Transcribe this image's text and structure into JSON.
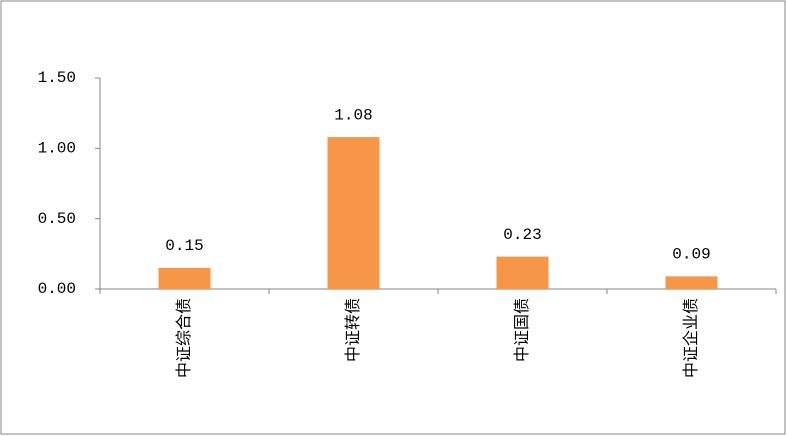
{
  "chart_data": {
    "type": "bar",
    "categories": [
      "中证综合债",
      "中证转债",
      "中证国债",
      "中证企业债"
    ],
    "values": [
      0.15,
      1.08,
      0.23,
      0.09
    ],
    "color": "#f79646",
    "ylim": [
      0,
      1.5
    ],
    "yticks": [
      {
        "value": 0,
        "label": "0.00"
      },
      {
        "value": 0.5,
        "label": "0.50"
      },
      {
        "value": 1,
        "label": "1.00"
      },
      {
        "value": 1.5,
        "label": "1.50"
      }
    ],
    "grid": false
  }
}
